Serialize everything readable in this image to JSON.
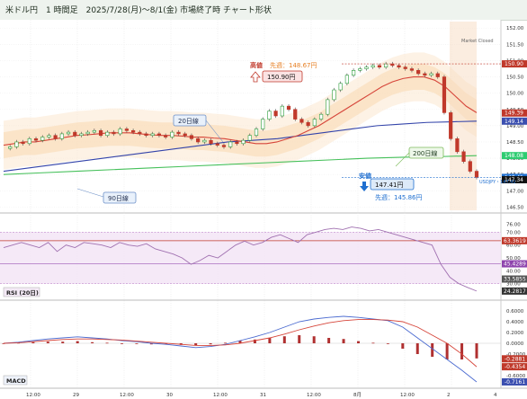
{
  "title": "米ドル円　1 時間足　2025/7/28(月)～8/1(金) 市場終了時 チャート形状",
  "market_status": "Market Closed",
  "price_axis": [
    "152.00",
    "151.50",
    "151.00",
    "150.50",
    "150.00",
    "149.50",
    "149.00",
    "148.50",
    "148.00",
    "147.50",
    "147.00",
    "146.50"
  ],
  "price_tags": [
    {
      "text": "150.90",
      "color": "#c0392b"
    },
    {
      "text": "149.39",
      "color": "#c0392b"
    },
    {
      "text": "149.14",
      "color": "#3b4fb0"
    },
    {
      "text": "148.08",
      "color": "#2ecc71"
    },
    {
      "text": "147.41",
      "color": "#1f6fd0"
    },
    {
      "text": "147.34",
      "color": "#111111"
    }
  ],
  "symbol_label": "USDJPY・147.41",
  "callouts": {
    "high_label": "高値",
    "high_prev": "先週：148.67円",
    "high_value": "150.90円",
    "low_label": "安値",
    "low_value": "147.41円",
    "low_prev": "先週：145.86円",
    "ma20": "20日線",
    "ma90": "90日線",
    "ma200": "200日線"
  },
  "rsi": {
    "label": "RSI (20日)",
    "axis": [
      "76.00",
      "70.00",
      "60.00",
      "50.00",
      "40.00",
      "30.00"
    ],
    "tags": [
      {
        "text": "63.3619",
        "color": "#c0392b"
      },
      {
        "text": "45.4289",
        "color": "#8e44ad"
      },
      {
        "text": "33.5855",
        "color": "#555555"
      },
      {
        "text": "24.2817",
        "color": "#333333"
      }
    ]
  },
  "macd": {
    "label": "MACD",
    "axis": [
      "0.6000",
      "0.4000",
      "0.2000",
      "0.0000",
      "-0.2000",
      "-0.4000",
      "-0.6000"
    ],
    "tags": [
      {
        "text": "-0.2881",
        "color": "#c0392b"
      },
      {
        "text": "-0.4354",
        "color": "#c0392b"
      },
      {
        "text": "-0.7161",
        "color": "#3b4fb0"
      }
    ]
  },
  "time_axis": [
    "12:00",
    "29",
    "12:00",
    "30",
    "12:00",
    "31",
    "12:00",
    "8月",
    "12:00",
    "2",
    "4"
  ],
  "chart_data": {
    "type": "candlestick",
    "title": "米ドル円　1 時間足　2025/7/28(月)～8/1(金) 市場終了時 チャート形状",
    "y_range": [
      146.4,
      152.2
    ],
    "high": 150.9,
    "low": 147.41,
    "close": 147.41,
    "price_path": [
      148.3,
      148.35,
      148.5,
      148.45,
      148.6,
      148.55,
      148.65,
      148.7,
      148.6,
      148.75,
      148.8,
      148.7,
      148.75,
      148.8,
      148.85,
      148.7,
      148.8,
      148.75,
      148.9,
      148.85,
      148.8,
      148.75,
      148.7,
      148.75,
      148.7,
      148.65,
      148.8,
      148.75,
      148.7,
      148.6,
      148.5,
      148.55,
      148.45,
      148.4,
      148.35,
      148.5,
      148.45,
      148.55,
      148.7,
      148.9,
      149.2,
      149.45,
      149.3,
      149.6,
      149.5,
      149.2,
      149.1,
      149.0,
      149.2,
      149.35,
      149.8,
      150.1,
      150.3,
      150.55,
      150.7,
      150.75,
      150.8,
      150.85,
      150.8,
      150.9,
      150.85,
      150.8,
      150.75,
      150.7,
      150.6,
      150.55,
      150.6,
      150.5,
      149.4,
      148.6,
      148.2,
      147.9,
      147.6,
      147.41
    ],
    "ma20": [
      148.4,
      148.45,
      148.5,
      148.5,
      148.55,
      148.6,
      148.65,
      148.7,
      148.72,
      148.75,
      148.78,
      148.78,
      148.78,
      148.75,
      148.72,
      148.7,
      148.7,
      148.68,
      148.65,
      148.65,
      148.62,
      148.6,
      148.55,
      148.5,
      148.45,
      148.45,
      148.5,
      148.6,
      148.7,
      148.85,
      149.0,
      149.2,
      149.4,
      149.6,
      149.8,
      150.0,
      150.2,
      150.35,
      150.45,
      150.5,
      150.5,
      150.4,
      150.2,
      149.9,
      149.6,
      149.4
    ],
    "ma90": [
      147.6,
      147.7,
      147.8,
      147.9,
      148.0,
      148.1,
      148.2,
      148.3,
      148.4,
      148.5,
      148.55,
      148.6,
      148.7,
      148.8,
      148.9,
      149.0,
      149.05,
      149.1,
      149.12,
      149.14
    ],
    "ma200": [
      147.5,
      147.55,
      147.6,
      147.65,
      147.7,
      147.75,
      147.8,
      147.85,
      147.9,
      147.95,
      148.0,
      148.03,
      148.05,
      148.08
    ],
    "rsi": [
      58,
      60,
      62,
      60,
      58,
      62,
      55,
      60,
      58,
      62,
      61,
      60,
      58,
      62,
      60,
      59,
      61,
      57,
      55,
      53,
      50,
      45,
      48,
      52,
      50,
      55,
      60,
      63,
      60,
      62,
      66,
      68,
      65,
      62,
      68,
      70,
      72,
      73,
      72,
      74,
      73,
      71,
      72,
      70,
      68,
      66,
      64,
      62,
      60,
      45,
      35,
      30,
      27,
      24.28
    ],
    "macd_line": [
      0.0,
      0.02,
      0.05,
      0.08,
      0.1,
      0.12,
      0.1,
      0.08,
      0.05,
      0.03,
      0.0,
      -0.02,
      -0.05,
      -0.08,
      -0.06,
      -0.02,
      0.05,
      0.12,
      0.2,
      0.3,
      0.4,
      0.45,
      0.48,
      0.5,
      0.48,
      0.45,
      0.42,
      0.3,
      0.1,
      -0.1,
      -0.3,
      -0.5,
      -0.7161
    ],
    "signal_line": [
      0.0,
      0.01,
      0.03,
      0.05,
      0.07,
      0.08,
      0.08,
      0.07,
      0.06,
      0.04,
      0.02,
      0.0,
      -0.02,
      -0.04,
      -0.04,
      -0.03,
      0.0,
      0.05,
      0.1,
      0.17,
      0.25,
      0.32,
      0.38,
      0.42,
      0.44,
      0.44,
      0.43,
      0.4,
      0.3,
      0.15,
      0.0,
      -0.2,
      -0.4354
    ]
  }
}
